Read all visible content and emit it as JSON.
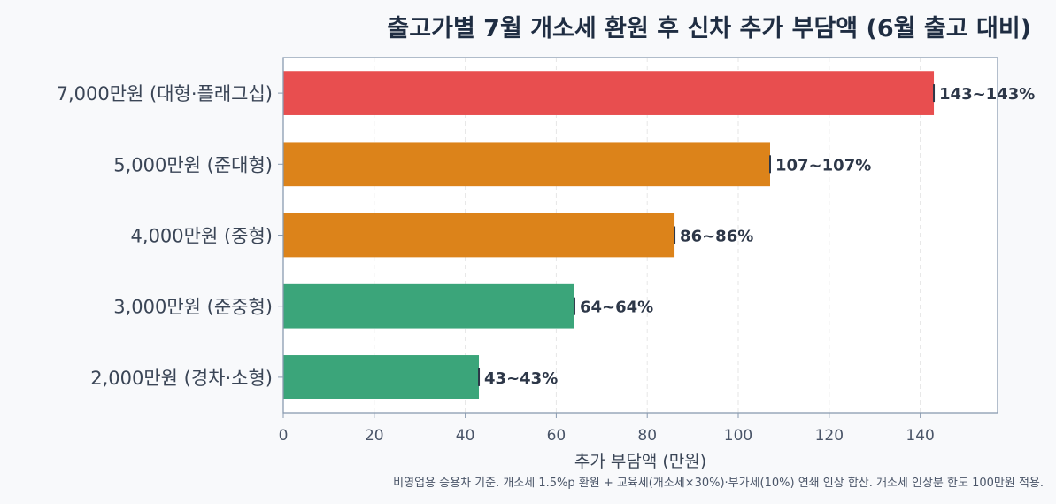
{
  "chart_data": {
    "type": "bar",
    "orientation": "horizontal",
    "title": "출고가별 7월 개소세 환원 후 신차 추가 부담액 (6월 출고 대비)",
    "xlabel": "추가 부담액 (만원)",
    "ylabel": "",
    "xlim": [
      0,
      157
    ],
    "xticks": [
      0,
      20,
      40,
      60,
      80,
      100,
      120,
      140
    ],
    "grid": "vertical-dashed",
    "categories": [
      "7,000만원 (대형·플래그십)",
      "5,000만원 (준대형)",
      "4,000만원 (중형)",
      "3,000만원 (준중형)",
      "2,000만원 (경차·소형)"
    ],
    "values": [
      143,
      107,
      86,
      64,
      43
    ],
    "range_low": [
      143,
      107,
      86,
      64,
      43
    ],
    "range_high": [
      143,
      107,
      86,
      64,
      43
    ],
    "data_labels": [
      "143~143%",
      "107~107%",
      "86~86%",
      "64~64%",
      "43~43%"
    ],
    "bar_colors": [
      "#e84e4f",
      "#dc831a",
      "#dc831a",
      "#3ba57a",
      "#3ba57a"
    ],
    "footnote": "비영업용 승용차 기준. 개소세 1.5%p 환원 + 교육세(개소세×30%)·부가세(10%) 연쇄 인상 합산. 개소세 인상분 한도 100만원 적용."
  }
}
